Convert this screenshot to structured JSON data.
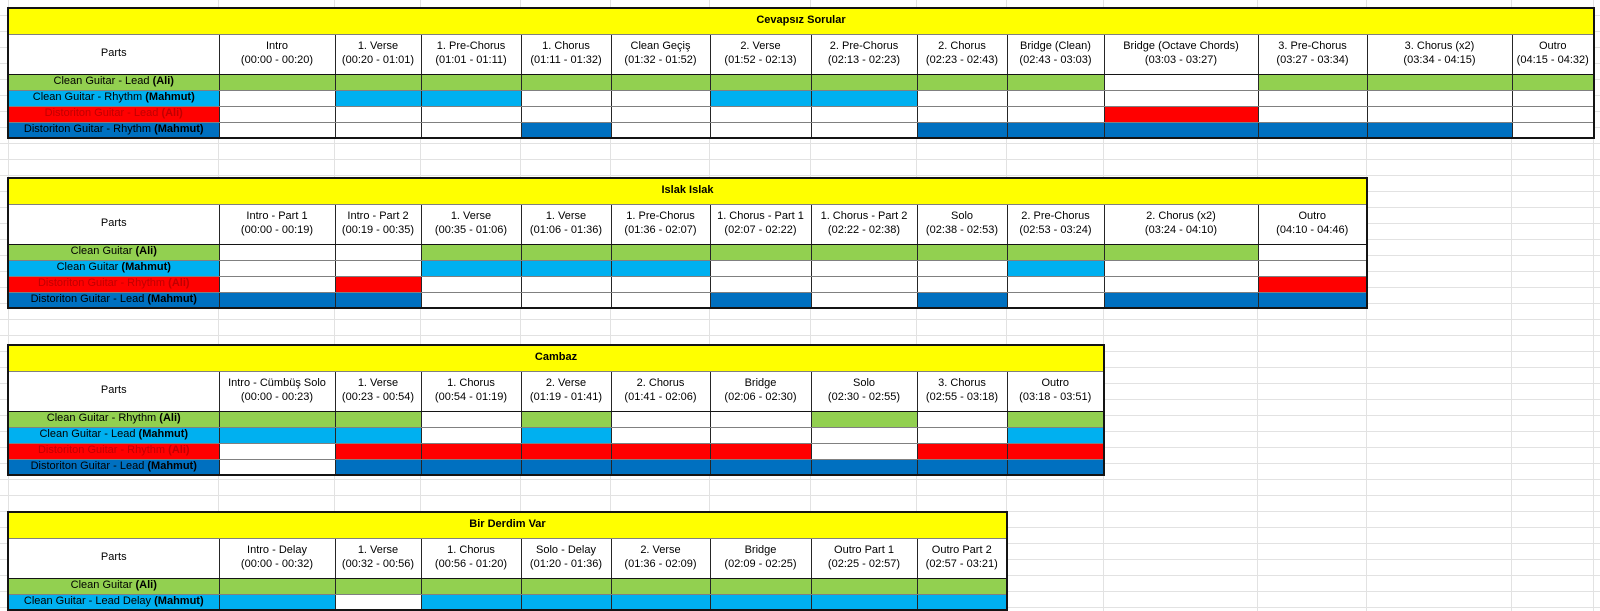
{
  "palette": {
    "yellow": "#FFFF00",
    "green": "#92D050",
    "cyan": "#00B0F0",
    "red": "#FF0000",
    "blue": "#0070C0"
  },
  "labels": {
    "parts": "Parts"
  },
  "songs": [
    {
      "title": "Cevapsız Sorular",
      "sections": [
        {
          "name": "Intro",
          "time": "(00:00 - 00:20)"
        },
        {
          "name": "1. Verse",
          "time": "(00:20 - 01:01)"
        },
        {
          "name": "1. Pre-Chorus",
          "time": "(01:01 - 01:11)"
        },
        {
          "name": "1. Chorus",
          "time": "(01:11 - 01:32)"
        },
        {
          "name": "Clean Geçiş",
          "time": "(01:32 - 01:52)"
        },
        {
          "name": "2. Verse",
          "time": "(01:52 - 02:13)"
        },
        {
          "name": "2. Pre-Chorus",
          "time": "(02:13 - 02:23)"
        },
        {
          "name": "2. Chorus",
          "time": "(02:23 - 02:43)"
        },
        {
          "name": "Bridge (Clean)",
          "time": "(02:43 - 03:03)"
        },
        {
          "name": "Bridge (Octave Chords)",
          "time": "(03:03 - 03:27)"
        },
        {
          "name": "3. Pre-Chorus",
          "time": "(03:27 - 03:34)"
        },
        {
          "name": "3. Chorus (x2)",
          "time": "(03:34 - 04:15)"
        },
        {
          "name": "Outro",
          "time": "(04:15 - 04:32)"
        }
      ],
      "parts": [
        {
          "name": "Clean Guitar - Lead",
          "owner": "(Ali)",
          "fill": "green",
          "text": "#000000",
          "cells": [
            1,
            1,
            1,
            1,
            1,
            1,
            1,
            1,
            1,
            0,
            1,
            1,
            1
          ]
        },
        {
          "name": "Clean Guitar - Rhythm",
          "owner": "(Mahmut)",
          "fill": "cyan",
          "text": "#000000",
          "cells": [
            0,
            1,
            1,
            0,
            0,
            1,
            1,
            0,
            0,
            0,
            0,
            0,
            0
          ]
        },
        {
          "name": "Distoriton Guitar - Lead",
          "owner": "(Ali)",
          "fill": "red",
          "text": "#C00000",
          "cells": [
            0,
            0,
            0,
            0,
            0,
            0,
            0,
            0,
            0,
            1,
            0,
            0,
            0
          ]
        },
        {
          "name": "Distoriton Guitar - Rhythm",
          "owner": "(Mahmut)",
          "fill": "blue",
          "text": "#000000",
          "cells": [
            0,
            0,
            0,
            1,
            0,
            0,
            0,
            1,
            1,
            1,
            1,
            1,
            0
          ]
        }
      ]
    },
    {
      "title": "Islak Islak",
      "sections": [
        {
          "name": "Intro - Part 1",
          "time": "(00:00 - 00:19)"
        },
        {
          "name": "Intro - Part 2",
          "time": "(00:19 - 00:35)"
        },
        {
          "name": "1. Verse",
          "time": "(00:35 - 01:06)"
        },
        {
          "name": "1. Verse",
          "time": "(01:06 - 01:36)"
        },
        {
          "name": "1. Pre-Chorus",
          "time": "(01:36 - 02:07)"
        },
        {
          "name": "1. Chorus - Part 1",
          "time": "(02:07 - 02:22)"
        },
        {
          "name": "1. Chorus - Part 2",
          "time": "(02:22 - 02:38)"
        },
        {
          "name": "Solo",
          "time": "(02:38 - 02:53)"
        },
        {
          "name": "2. Pre-Chorus",
          "time": "(02:53 - 03:24)"
        },
        {
          "name": "2. Chorus (x2)",
          "time": "(03:24 - 04:10)"
        },
        {
          "name": "Outro",
          "time": "(04:10 - 04:46)"
        }
      ],
      "parts": [
        {
          "name": "Clean Guitar",
          "owner": "(Ali)",
          "fill": "green",
          "text": "#000000",
          "cells": [
            0,
            0,
            1,
            1,
            1,
            1,
            1,
            1,
            1,
            1,
            0
          ]
        },
        {
          "name": "Clean Guitar",
          "owner": "(Mahmut)",
          "fill": "cyan",
          "text": "#000000",
          "cells": [
            0,
            0,
            1,
            1,
            1,
            0,
            0,
            0,
            1,
            0,
            0
          ]
        },
        {
          "name": "Distoriton Guitar - Rhythm",
          "owner": "(Ali)",
          "fill": "red",
          "text": "#C00000",
          "cells": [
            0,
            1,
            0,
            0,
            0,
            0,
            0,
            0,
            0,
            0,
            1
          ]
        },
        {
          "name": "Distoriton Guitar - Lead",
          "owner": "(Mahmut)",
          "fill": "blue",
          "text": "#000000",
          "cells": [
            1,
            1,
            0,
            0,
            0,
            1,
            0,
            1,
            0,
            1,
            1
          ]
        }
      ]
    },
    {
      "title": "Cambaz",
      "sections": [
        {
          "name": "Intro - Cümbüş Solo",
          "time": "(00:00 - 00:23)"
        },
        {
          "name": "1. Verse",
          "time": "(00:23 - 00:54)"
        },
        {
          "name": "1. Chorus",
          "time": "(00:54 - 01:19)"
        },
        {
          "name": "2. Verse",
          "time": "(01:19 - 01:41)"
        },
        {
          "name": "2. Chorus",
          "time": "(01:41 - 02:06)"
        },
        {
          "name": "Bridge",
          "time": "(02:06 - 02:30)"
        },
        {
          "name": "Solo",
          "time": "(02:30 - 02:55)"
        },
        {
          "name": "3. Chorus",
          "time": "(02:55 - 03:18)"
        },
        {
          "name": "Outro",
          "time": "(03:18 - 03:51)"
        }
      ],
      "parts": [
        {
          "name": "Clean Guitar - Rhythm",
          "owner": "(Ali)",
          "fill": "green",
          "text": "#000000",
          "cells": [
            1,
            1,
            0,
            1,
            0,
            0,
            1,
            0,
            1
          ]
        },
        {
          "name": "Clean Guitar - Lead",
          "owner": "(Mahmut)",
          "fill": "cyan",
          "text": "#000000",
          "cells": [
            1,
            1,
            0,
            1,
            0,
            0,
            0,
            0,
            1
          ]
        },
        {
          "name": "Distoriton Guitar - Rhythm",
          "owner": "(Ali)",
          "fill": "red",
          "text": "#C00000",
          "cells": [
            0,
            1,
            1,
            1,
            1,
            1,
            0,
            1,
            1
          ]
        },
        {
          "name": "Distoriton Guitar - Lead",
          "owner": "(Mahmut)",
          "fill": "blue",
          "text": "#000000",
          "cells": [
            0,
            1,
            1,
            1,
            1,
            1,
            1,
            1,
            1
          ]
        }
      ]
    },
    {
      "title": "Bir Derdim Var",
      "sections": [
        {
          "name": "Intro - Delay",
          "time": "(00:00 - 00:32)"
        },
        {
          "name": "1. Verse",
          "time": "(00:32 - 00:56)"
        },
        {
          "name": "1. Chorus",
          "time": "(00:56 - 01:20)"
        },
        {
          "name": "Solo - Delay",
          "time": "(01:20 - 01:36)"
        },
        {
          "name": "2. Verse",
          "time": "(01:36 - 02:09)"
        },
        {
          "name": "Bridge",
          "time": "(02:09 - 02:25)"
        },
        {
          "name": "Outro Part 1",
          "time": "(02:25 - 02:57)"
        },
        {
          "name": "Outro Part 2",
          "time": "(02:57 - 03:21)"
        }
      ],
      "parts": [
        {
          "name": "Clean Guitar",
          "owner": "(Ali)",
          "fill": "green",
          "text": "#000000",
          "cells": [
            1,
            1,
            1,
            1,
            1,
            1,
            1,
            1
          ]
        },
        {
          "name": "Clean Guitar - Lead Delay",
          "owner": "(Mahmut)",
          "fill": "cyan",
          "text": "#000000",
          "cells": [
            1,
            0,
            1,
            1,
            1,
            1,
            1,
            1
          ]
        }
      ]
    }
  ]
}
